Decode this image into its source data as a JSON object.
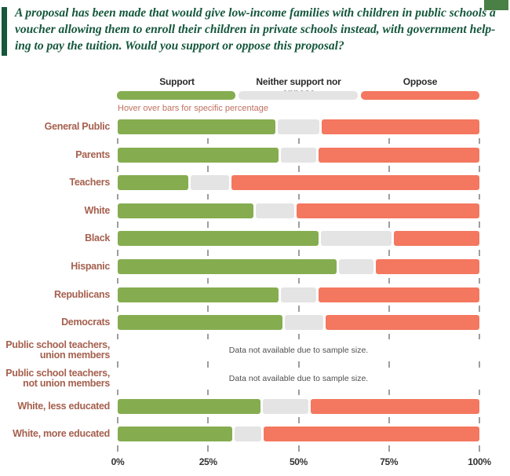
{
  "header": {
    "question": "A proposal has been made that would give low-income families with children in public schools a\nvoucher allowing them to enroll their children in private schools instead, with government help-\ning to pay the tuition. Would you support or oppose this proposal?"
  },
  "hover_note": "Hover over bars for specific percentage",
  "colors": {
    "support": "#85AD50",
    "neither": "#E4E4E4",
    "oppose": "#F4775F",
    "question_green": "#14573B",
    "label_brick": "#A5604E",
    "hover_text": "#C0705E",
    "corner_green": "#4A8045",
    "axis_text": "#333333",
    "tick_gray": "#9E9E9E",
    "note_text": "#4F4F4F",
    "legend_text": "#2B2B2B"
  },
  "chart_data": {
    "type": "stacked_bar_100",
    "legend_position": "top",
    "grid": false,
    "xlim": [
      0,
      100
    ],
    "xlabel_ticks": [
      "0%",
      "25%",
      "50%",
      "75%",
      "100%"
    ],
    "categories": [
      "General Public",
      "Parents",
      "Teachers",
      "White",
      "Black",
      "Hispanic",
      "Republicans",
      "Democrats",
      "Public school teachers,\nunion members",
      "Public school teachers,\nnot union members",
      "White, less educated",
      "White, more educated"
    ],
    "series": [
      {
        "key": "support",
        "name": "Support",
        "color": "#85AD50",
        "values": [
          44,
          45,
          20,
          38,
          56,
          61,
          45,
          46,
          null,
          null,
          40,
          32
        ]
      },
      {
        "key": "neither",
        "name": "Neither support nor oppose",
        "color": "#E4E4E4",
        "values": [
          12,
          10,
          11,
          11,
          20,
          10,
          10,
          11,
          null,
          null,
          13,
          8
        ]
      },
      {
        "key": "oppose",
        "name": "Oppose",
        "color": "#F4775F",
        "values": [
          44,
          45,
          69,
          51,
          24,
          29,
          45,
          43,
          null,
          null,
          47,
          60
        ]
      }
    ],
    "na_rows": [
      8,
      9
    ],
    "na_note": "Data not available due to sample size."
  }
}
